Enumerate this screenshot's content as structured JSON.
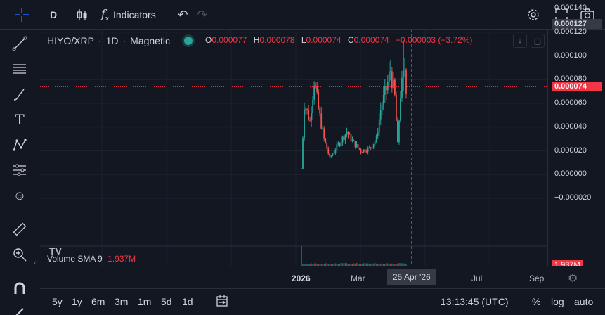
{
  "toolbar": {
    "interval": "D",
    "indicators_label": "Indicators"
  },
  "legend": {
    "symbol": "HIYO/XRP",
    "interval": "1D",
    "source": "Magnetic",
    "o_key": "O",
    "o_val": "0.000077",
    "h_key": "H",
    "h_val": "0.000078",
    "l_key": "L",
    "l_val": "0.000074",
    "c_key": "C",
    "c_val": "0.000074",
    "change": "−0.000003 (−3.72%)"
  },
  "volume": {
    "label": "Volume SMA 9",
    "value": "1.937M",
    "axis_badge": "1.937M"
  },
  "price_axis": {
    "ticks": [
      "0.000140",
      "0.000127",
      "0.000120",
      "0.000100",
      "0.000080",
      "0.000074",
      "0.000060",
      "0.000040",
      "0.000020",
      "0.000000",
      "−0.000020"
    ],
    "crosshair_label": "0.000127",
    "last_label": "0.000074"
  },
  "time_axis": {
    "ticks": [
      "2026",
      "Mar",
      "Jul",
      "Sep"
    ],
    "crosshair_label": "25 Apr '26"
  },
  "bottom": {
    "ranges": [
      "5y",
      "1y",
      "6m",
      "3m",
      "1m",
      "5d",
      "1d"
    ],
    "clock": "13:13:45 (UTC)",
    "percent": "%",
    "log": "log",
    "auto": "auto"
  },
  "colors": {
    "up": "#26a69a",
    "down": "#ef5350",
    "bg": "#131722",
    "accent": "#2962ff"
  },
  "chart_data": {
    "type": "candlestick",
    "x": [
      "Jan 2026",
      "Feb 2026",
      "Mar 2026",
      "Apr 2026"
    ],
    "close_values": [
      1.2e-05,
      3e-05,
      2e-05,
      7.4e-05
    ],
    "ylim": [
      -3e-05,
      0.000145
    ]
  }
}
